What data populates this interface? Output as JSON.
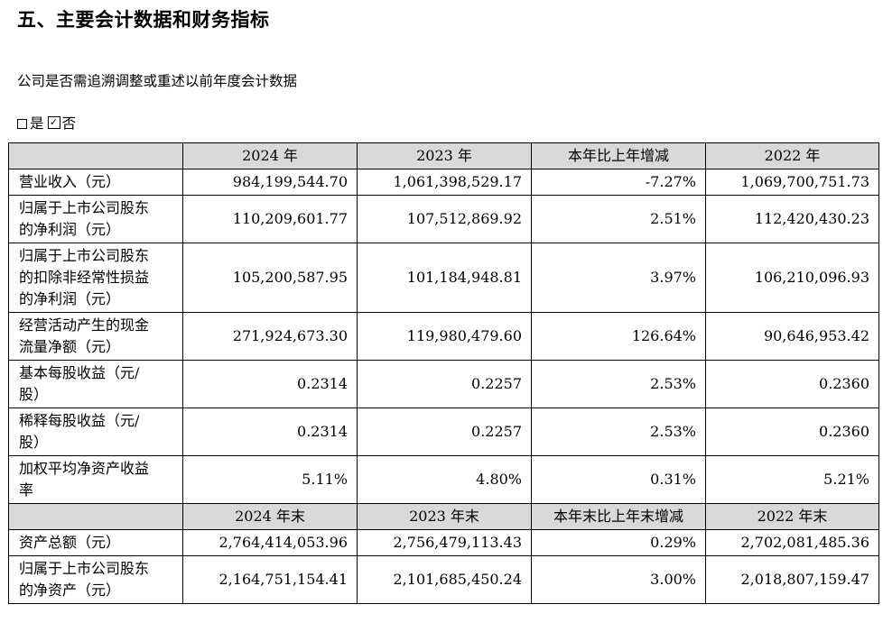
{
  "section_title": "五、主要会计数据和财务指标",
  "question": "公司是否需追溯调整或重述以前年度会计数据",
  "answer": {
    "yes_label": "是",
    "no_label": "否",
    "checked": "否"
  },
  "headers1": [
    "2024 年",
    "2023 年",
    "本年比上年增减",
    "2022 年"
  ],
  "rows1": [
    {
      "label": [
        "营业收入（元）"
      ],
      "values": [
        "984,199,544.70",
        "1,061,398,529.17",
        "-7.27%",
        "1,069,700,751.73"
      ]
    },
    {
      "label": [
        "归属于上市公司股东",
        "的净利润（元）"
      ],
      "values": [
        "110,209,601.77",
        "107,512,869.92",
        "2.51%",
        "112,420,430.23"
      ]
    },
    {
      "label": [
        "归属于上市公司股东",
        "的扣除非经常性损益",
        "的净利润（元）"
      ],
      "values": [
        "105,200,587.95",
        "101,184,948.81",
        "3.97%",
        "106,210,096.93"
      ]
    },
    {
      "label": [
        "经营活动产生的现金",
        "流量净额（元）"
      ],
      "values": [
        "271,924,673.30",
        "119,980,479.60",
        "126.64%",
        "90,646,953.42"
      ]
    },
    {
      "label": [
        "基本每股收益（元/",
        "股）"
      ],
      "values": [
        "0.2314",
        "0.2257",
        "2.53%",
        "0.2360"
      ]
    },
    {
      "label": [
        "稀释每股收益（元/",
        "股）"
      ],
      "values": [
        "0.2314",
        "0.2257",
        "2.53%",
        "0.2360"
      ]
    },
    {
      "label": [
        "加权平均净资产收益",
        "率"
      ],
      "values": [
        "5.11%",
        "4.80%",
        "0.31%",
        "5.21%"
      ]
    }
  ],
  "headers2": [
    "2024 年末",
    "2023 年末",
    "本年末比上年末增减",
    "2022 年末"
  ],
  "rows2": [
    {
      "label": [
        "资产总额（元）"
      ],
      "values": [
        "2,764,414,053.96",
        "2,756,479,113.43",
        "0.29%",
        "2,702,081,485.36"
      ]
    },
    {
      "label": [
        "归属于上市公司股东",
        "的净资产（元）"
      ],
      "values": [
        "2,164,751,154.41",
        "2,101,685,450.24",
        "3.00%",
        "2,018,807,159.47"
      ]
    }
  ],
  "colors": {
    "header_bg": "#d9d9d9",
    "border": "#000000"
  }
}
